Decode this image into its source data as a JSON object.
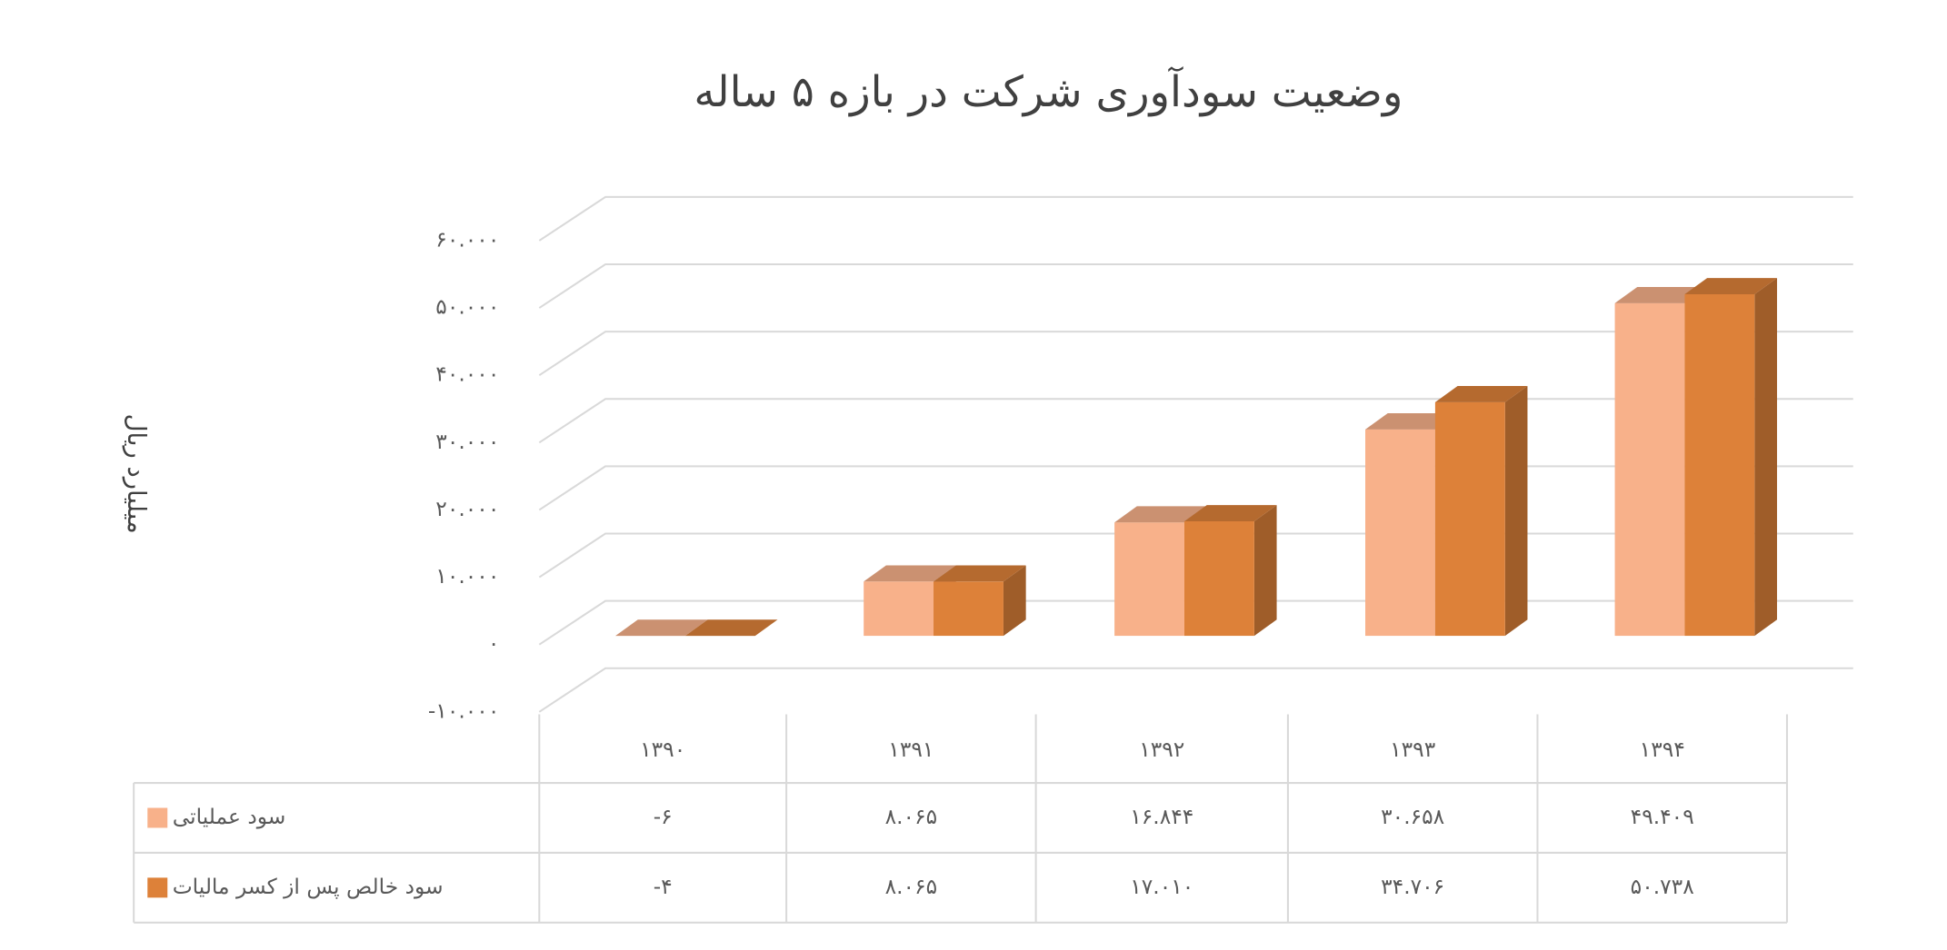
{
  "chart_data": {
    "type": "bar3d",
    "title": "وضعیت سودآوری شرکت در بازه ۵ ساله",
    "y_label": "میلیارد ریال",
    "categories": [
      "۱۳۹۰",
      "۱۳۹۱",
      "۱۳۹۲",
      "۱۳۹۳",
      "۱۳۹۴"
    ],
    "series": [
      {
        "name": "سود عملیاتی",
        "color": "#F8B18A",
        "values": [
          -6,
          8065,
          16844,
          30658,
          49409
        ],
        "value_labels": [
          "-۶",
          "۸.۰۶۵",
          "۱۶.۸۴۴",
          "۳۰.۶۵۸",
          "۴۹.۴۰۹"
        ]
      },
      {
        "name": "سود خالص پس از کسر مالیات",
        "color": "#DD8139",
        "values": [
          -4,
          8065,
          17010,
          34706,
          50738
        ],
        "value_labels": [
          "-۴",
          "۸.۰۶۵",
          "۱۷.۰۱۰",
          "۳۴.۷۰۶",
          "۵۰.۷۳۸"
        ]
      }
    ],
    "ylim": [
      -10000,
      60000
    ],
    "yticks": [
      {
        "value": -10000,
        "label": "-۱۰.۰۰۰"
      },
      {
        "value": 0,
        "label": "۰"
      },
      {
        "value": 10000,
        "label": "۱۰.۰۰۰"
      },
      {
        "value": 20000,
        "label": "۲۰.۰۰۰"
      },
      {
        "value": 30000,
        "label": "۳۰.۰۰۰"
      },
      {
        "value": 40000,
        "label": "۴۰.۰۰۰"
      },
      {
        "value": 50000,
        "label": "۵۰.۰۰۰"
      },
      {
        "value": 60000,
        "label": "۶۰.۰۰۰"
      }
    ],
    "grid": true
  }
}
